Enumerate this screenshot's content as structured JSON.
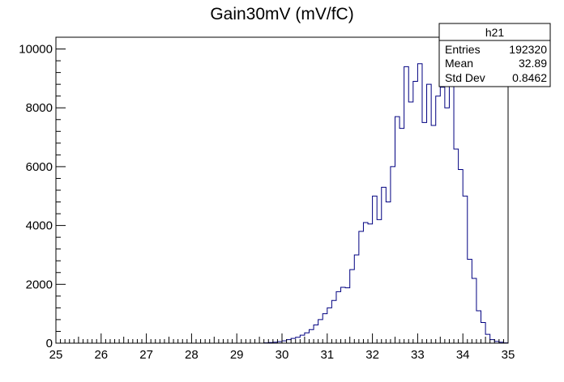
{
  "chart_data": {
    "type": "histogram",
    "title": "Gain30mV (mV/fC)",
    "xlabel": "",
    "ylabel": "",
    "xlim": [
      25,
      35
    ],
    "ylim": [
      0,
      10400
    ],
    "bin_width": 0.1,
    "line_color": "#000080",
    "x_ticks": [
      "25",
      "26",
      "27",
      "28",
      "29",
      "30",
      "31",
      "32",
      "33",
      "34",
      "35"
    ],
    "y_ticks": [
      "0",
      "2000",
      "4000",
      "6000",
      "8000",
      "10000"
    ],
    "bins": [
      {
        "x": 29.6,
        "y": 10
      },
      {
        "x": 29.7,
        "y": 20
      },
      {
        "x": 29.8,
        "y": 30
      },
      {
        "x": 29.9,
        "y": 50
      },
      {
        "x": 30.0,
        "y": 80
      },
      {
        "x": 30.1,
        "y": 120
      },
      {
        "x": 30.2,
        "y": 160
      },
      {
        "x": 30.3,
        "y": 200
      },
      {
        "x": 30.4,
        "y": 270
      },
      {
        "x": 30.5,
        "y": 350
      },
      {
        "x": 30.6,
        "y": 460
      },
      {
        "x": 30.7,
        "y": 620
      },
      {
        "x": 30.8,
        "y": 800
      },
      {
        "x": 30.9,
        "y": 1000
      },
      {
        "x": 31.0,
        "y": 1200
      },
      {
        "x": 31.1,
        "y": 1450
      },
      {
        "x": 31.2,
        "y": 1750
      },
      {
        "x": 31.3,
        "y": 1900
      },
      {
        "x": 31.4,
        "y": 1880
      },
      {
        "x": 31.5,
        "y": 2500
      },
      {
        "x": 31.6,
        "y": 3000
      },
      {
        "x": 31.7,
        "y": 3800
      },
      {
        "x": 31.8,
        "y": 4100
      },
      {
        "x": 31.9,
        "y": 4050
      },
      {
        "x": 32.0,
        "y": 5000
      },
      {
        "x": 32.1,
        "y": 4200
      },
      {
        "x": 32.2,
        "y": 5300
      },
      {
        "x": 32.3,
        "y": 4800
      },
      {
        "x": 32.4,
        "y": 6000
      },
      {
        "x": 32.5,
        "y": 7700
      },
      {
        "x": 32.6,
        "y": 7300
      },
      {
        "x": 32.7,
        "y": 9400
      },
      {
        "x": 32.8,
        "y": 8200
      },
      {
        "x": 32.9,
        "y": 8900
      },
      {
        "x": 33.0,
        "y": 9500
      },
      {
        "x": 33.1,
        "y": 7500
      },
      {
        "x": 33.2,
        "y": 8800
      },
      {
        "x": 33.3,
        "y": 7400
      },
      {
        "x": 33.4,
        "y": 8400
      },
      {
        "x": 33.5,
        "y": 8700
      },
      {
        "x": 33.6,
        "y": 8000
      },
      {
        "x": 33.7,
        "y": 9400
      },
      {
        "x": 33.8,
        "y": 6600
      },
      {
        "x": 33.9,
        "y": 5900
      },
      {
        "x": 34.0,
        "y": 5000
      },
      {
        "x": 34.1,
        "y": 2850
      },
      {
        "x": 34.2,
        "y": 2200
      },
      {
        "x": 34.3,
        "y": 1100
      },
      {
        "x": 34.4,
        "y": 700
      },
      {
        "x": 34.5,
        "y": 300
      },
      {
        "x": 34.6,
        "y": 120
      },
      {
        "x": 34.7,
        "y": 60
      },
      {
        "x": 34.8,
        "y": 30
      },
      {
        "x": 34.9,
        "y": 10
      }
    ]
  },
  "stats_box": {
    "name": "h21",
    "rows": [
      {
        "label": "Entries",
        "value": "192320"
      },
      {
        "label": "Mean",
        "value": "32.89"
      },
      {
        "label": "Std Dev",
        "value": "0.8462"
      }
    ]
  }
}
